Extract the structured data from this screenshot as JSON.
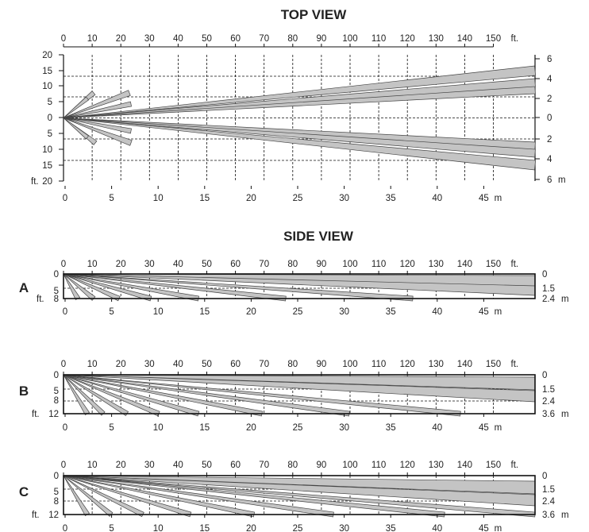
{
  "top_view": {
    "title": "TOP VIEW",
    "ft_ticks": [
      "0",
      "10",
      "20",
      "30",
      "40",
      "50",
      "60",
      "70",
      "80",
      "90",
      "100",
      "110",
      "120",
      "130",
      "140",
      "150"
    ],
    "ft_unit": "ft.",
    "m_ticks": [
      "0",
      "5",
      "10",
      "15",
      "20",
      "25",
      "30",
      "35",
      "40",
      "45"
    ],
    "m_unit": "m",
    "left_ticks": [
      "20",
      "15",
      "10",
      "5",
      "0",
      "5",
      "10",
      "15",
      "20"
    ],
    "left_unit": "ft.",
    "right_ticks": [
      "6",
      "4",
      "2",
      "0",
      "2",
      "4",
      "6"
    ],
    "right_unit": "m"
  },
  "side_view": {
    "title": "SIDE VIEW",
    "panels": [
      {
        "letter": "A",
        "left_ticks": [
          "0",
          "5",
          "8"
        ],
        "left_unit": "ft.",
        "right_ticks": [
          "0",
          "1.5",
          "2.4"
        ],
        "right_unit": "m"
      },
      {
        "letter": "B",
        "left_ticks": [
          "0",
          "5",
          "8",
          "12"
        ],
        "left_unit": "ft.",
        "right_ticks": [
          "0",
          "1.5",
          "2.4",
          "3.6"
        ],
        "right_unit": "m"
      },
      {
        "letter": "C",
        "left_ticks": [
          "0",
          "5",
          "8",
          "12"
        ],
        "left_unit": "ft.",
        "right_ticks": [
          "0",
          "1.5",
          "2.4",
          "3.6"
        ],
        "right_unit": "m"
      }
    ]
  }
}
